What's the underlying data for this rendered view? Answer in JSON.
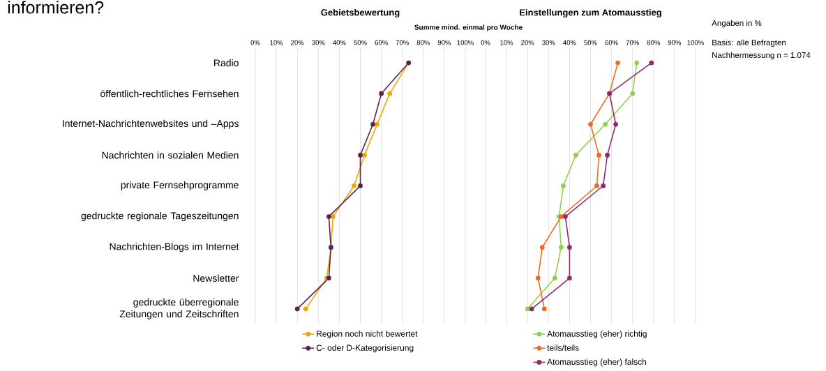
{
  "chart_data": [
    {
      "type": "line",
      "title": "Gebietsbewertung",
      "xlabel": "Summe mind. einmal pro Woche",
      "annotations": [
        "informieren?"
      ],
      "orientation": "horizontal",
      "categories": [
        "Radio",
        "öffentlich-rechtliches Fernsehen",
        "Internet-Nachrichtenwebsites und –Apps",
        "Nachrichten in sozialen Medien",
        "private Fernsehprogramme",
        "gedruckte regionale Tageszeitungen",
        "Nachrichten-Blogs im Internet",
        "Newsletter",
        "gedruckte überregionale Zeitungen und Zeitschriften"
      ],
      "series": [
        {
          "name": "Region noch nicht bewertet",
          "color": "#f0a800",
          "values": [
            73,
            64,
            58,
            52,
            47,
            37,
            36,
            34,
            24
          ]
        },
        {
          "name": "C- oder D-Kategorisierung",
          "color": "#5a2350",
          "values": [
            73,
            60,
            56,
            50,
            50,
            35,
            36,
            35,
            20
          ]
        }
      ],
      "xlim": [
        0,
        100
      ],
      "xticks": [
        {
          "value": 0,
          "label": "0%"
        },
        {
          "value": 10,
          "label": "10%"
        },
        {
          "value": 20,
          "label": "20%"
        },
        {
          "value": 30,
          "label": "30%"
        },
        {
          "value": 40,
          "label": "40%"
        },
        {
          "value": 50,
          "label": "50%"
        },
        {
          "value": 60,
          "label": "60%"
        },
        {
          "value": 70,
          "label": "70%"
        },
        {
          "value": 80,
          "label": "80%"
        },
        {
          "value": 90,
          "label": "90%"
        },
        {
          "value": 100,
          "label": "100%"
        }
      ],
      "grid": "x",
      "marker": "circle",
      "legend": "bottom"
    },
    {
      "type": "line",
      "title": "Einstellungen zum Atomausstieg",
      "annotations": [
        "Angaben in %",
        "Basis: alle Befragten",
        "Nachhermessung n = 1.074"
      ],
      "orientation": "horizontal",
      "series": [
        {
          "name": "Atomausstieg (eher) richtig",
          "color": "#92d050",
          "values": [
            72,
            70,
            57,
            43,
            37,
            35,
            36,
            33,
            20
          ]
        },
        {
          "name": "teils/teils",
          "color": "#f26b21",
          "values": [
            63,
            59,
            50,
            54,
            53,
            36,
            27,
            25,
            28
          ]
        },
        {
          "name": "Atomausstieg (eher) falsch",
          "color": "#8e2c6e",
          "values": [
            79,
            59,
            62,
            58,
            56,
            38,
            40,
            40,
            22
          ]
        }
      ],
      "xlim": [
        0,
        100
      ],
      "xticks": [
        {
          "value": 0,
          "label": "0%"
        },
        {
          "value": 10,
          "label": "10%"
        },
        {
          "value": 20,
          "label": "20%"
        },
        {
          "value": 30,
          "label": "30%"
        },
        {
          "value": 40,
          "label": "40%"
        },
        {
          "value": 50,
          "label": "50%"
        },
        {
          "value": 60,
          "label": "60%"
        },
        {
          "value": 70,
          "label": "70%"
        },
        {
          "value": 80,
          "label": "80%"
        },
        {
          "value": 90,
          "label": "90%"
        },
        {
          "value": 100,
          "label": "100%"
        }
      ],
      "tick_labels": "x",
      "grid": "x",
      "marker": "circle",
      "legend": "bottom"
    }
  ]
}
